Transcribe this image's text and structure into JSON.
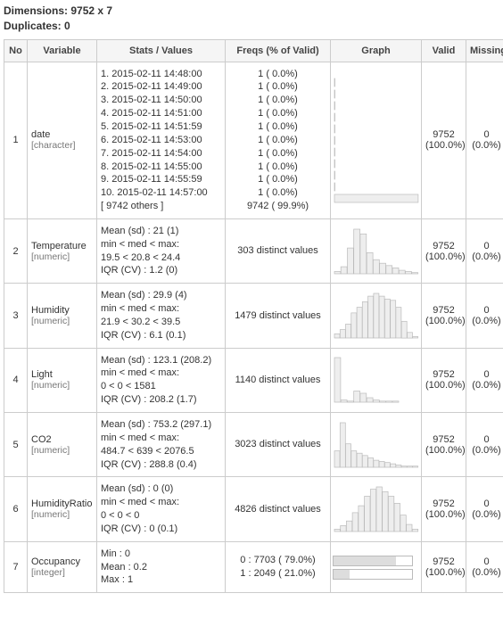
{
  "meta": {
    "dimensions_label": "Dimensions:",
    "dimensions_value": "9752 x 7",
    "duplicates_label": "Duplicates:",
    "duplicates_value": "0"
  },
  "headers": {
    "no": "No",
    "variable": "Variable",
    "stats": "Stats / Values",
    "freqs": "Freqs (% of Valid)",
    "graph": "Graph",
    "valid": "Valid",
    "missing": "Missing"
  },
  "style": {
    "bar_fill": "#eeeeee",
    "bar_stroke": "#bbbbbb",
    "border_color": "#cccccc",
    "header_bg": "#f5f5f5",
    "text_color": "#333333",
    "subtext_color": "#777777"
  },
  "rows": [
    {
      "no": "1",
      "variable": "date",
      "vartype": "[character]",
      "stats": [
        "1. 2015-02-11 14:48:00",
        "2. 2015-02-11 14:49:00",
        "3. 2015-02-11 14:50:00",
        "4. 2015-02-11 14:51:00",
        "5. 2015-02-11 14:51:59",
        "6. 2015-02-11 14:53:00",
        "7. 2015-02-11 14:54:00",
        "8. 2015-02-11 14:55:00",
        "9. 2015-02-11 14:55:59",
        "10. 2015-02-11 14:57:00",
        "[ 9742 others ]"
      ],
      "freqs": [
        "1 (  0.0%)",
        "1 (  0.0%)",
        "1 (  0.0%)",
        "1 (  0.0%)",
        "1 (  0.0%)",
        "1 (  0.0%)",
        "1 (  0.0%)",
        "1 (  0.0%)",
        "1 (  0.0%)",
        "1 (  0.0%)",
        "9742 ( 99.9%)"
      ],
      "graph": {
        "type": "date_hbar",
        "pcts": [
          0,
          0,
          0,
          0,
          0,
          0,
          0,
          0,
          0,
          0,
          99.9
        ]
      },
      "valid": "9752\n(100.0%)",
      "missing": "0\n(0.0%)"
    },
    {
      "no": "2",
      "variable": "Temperature",
      "vartype": "[numeric]",
      "stats": [
        "Mean (sd) : 21 (1)",
        "min < med < max:",
        "19.5 < 20.8 < 24.4",
        "IQR (CV) : 1.2 (0)"
      ],
      "freqs": [
        "303 distinct values"
      ],
      "graph": {
        "type": "hist",
        "heights": [
          2,
          6,
          22,
          38,
          34,
          18,
          12,
          9,
          7,
          5,
          3,
          2,
          1
        ]
      },
      "valid": "9752\n(100.0%)",
      "missing": "0\n(0.0%)"
    },
    {
      "no": "3",
      "variable": "Humidity",
      "vartype": "[numeric]",
      "stats": [
        "Mean (sd) : 29.9 (4)",
        "min < med < max:",
        "21.9 < 30.2 < 39.5",
        "IQR (CV) : 6.1 (0.1)"
      ],
      "freqs": [
        "1479 distinct values"
      ],
      "graph": {
        "type": "hist",
        "heights": [
          3,
          6,
          10,
          18,
          22,
          26,
          30,
          32,
          30,
          28,
          27,
          22,
          12,
          4,
          1
        ]
      },
      "valid": "9752\n(100.0%)",
      "missing": "0\n(0.0%)"
    },
    {
      "no": "4",
      "variable": "Light",
      "vartype": "[numeric]",
      "stats": [
        "Mean (sd) : 123.1 (208.2)",
        "min < med < max:",
        "0 < 0 < 1581",
        "IQR (CV) : 208.2 (1.7)"
      ],
      "freqs": [
        "1140 distinct values"
      ],
      "graph": {
        "type": "hist",
        "heights": [
          40,
          2,
          1,
          10,
          8,
          4,
          2,
          1,
          1,
          1,
          0,
          0,
          0
        ]
      },
      "valid": "9752\n(100.0%)",
      "missing": "0\n(0.0%)"
    },
    {
      "no": "5",
      "variable": "CO2",
      "vartype": "[numeric]",
      "stats": [
        "Mean (sd) : 753.2 (297.1)",
        "min < med < max:",
        "484.7 < 639 < 2076.5",
        "IQR (CV) : 288.8 (0.4)"
      ],
      "freqs": [
        "3023 distinct values"
      ],
      "graph": {
        "type": "hist",
        "heights": [
          14,
          38,
          20,
          14,
          12,
          10,
          8,
          6,
          5,
          4,
          3,
          2,
          1,
          1,
          1
        ]
      },
      "valid": "9752\n(100.0%)",
      "missing": "0\n(0.0%)"
    },
    {
      "no": "6",
      "variable": "HumidityRatio",
      "vartype": "[numeric]",
      "stats": [
        "Mean (sd) : 0 (0)",
        "min < med < max:",
        "0 < 0 < 0",
        "IQR (CV) : 0 (0.1)"
      ],
      "freqs": [
        "4826 distinct values"
      ],
      "graph": {
        "type": "hist",
        "heights": [
          2,
          5,
          9,
          16,
          22,
          30,
          36,
          38,
          34,
          30,
          24,
          14,
          6,
          2
        ]
      },
      "valid": "9752\n(100.0%)",
      "missing": "0\n(0.0%)"
    },
    {
      "no": "7",
      "variable": "Occupancy",
      "vartype": "[integer]",
      "stats": [
        "Min  : 0",
        "Mean : 0.2",
        "Max  : 1"
      ],
      "freqs": [
        "0 :  7703 ( 79.0%)",
        "1 :  2049 ( 21.0%)"
      ],
      "graph": {
        "type": "hbar",
        "pcts": [
          79.0,
          21.0
        ]
      },
      "valid": "9752\n(100.0%)",
      "missing": "0\n(0.0%)"
    }
  ]
}
